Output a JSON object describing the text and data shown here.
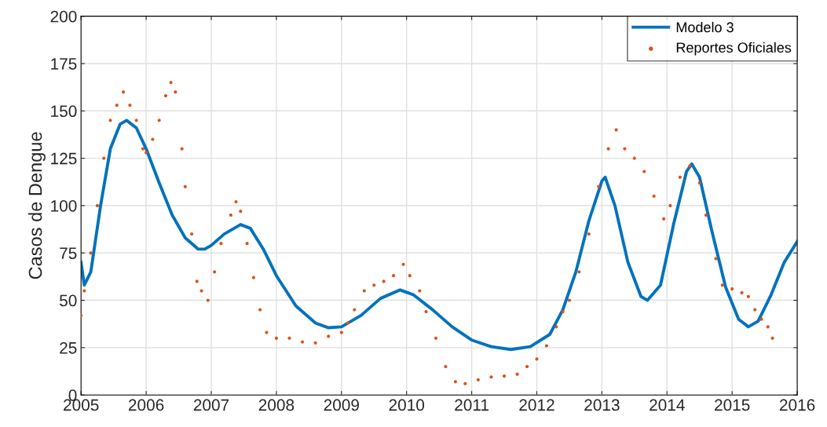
{
  "chart_data": {
    "type": "line",
    "ylabel": "Casos de Dengue",
    "xlim": [
      2005,
      2016
    ],
    "xticks": [
      2005,
      2006,
      2007,
      2008,
      2009,
      2010,
      2011,
      2012,
      2013,
      2014,
      2015,
      2016
    ],
    "ylim": [
      0,
      200
    ],
    "yticks": [
      0,
      25,
      50,
      75,
      100,
      125,
      150,
      175,
      200
    ],
    "grid": true,
    "legend": "top right",
    "series": [
      {
        "name": "Modelo 3",
        "color": "#0072bd",
        "marker": "none",
        "line_style": "solid",
        "x": [
          2005.0,
          2005.05,
          2005.15,
          2005.3,
          2005.45,
          2005.6,
          2005.7,
          2005.85,
          2006.0,
          2006.2,
          2006.4,
          2006.6,
          2006.8,
          2006.9,
          2007.0,
          2007.2,
          2007.45,
          2007.6,
          2007.8,
          2008.0,
          2008.3,
          2008.6,
          2008.8,
          2009.0,
          2009.3,
          2009.6,
          2009.9,
          2010.1,
          2010.4,
          2010.7,
          2011.0,
          2011.3,
          2011.6,
          2011.9,
          2012.2,
          2012.4,
          2012.6,
          2012.8,
          2013.0,
          2013.05,
          2013.2,
          2013.4,
          2013.6,
          2013.7,
          2013.9,
          2014.1,
          2014.3,
          2014.38,
          2014.5,
          2014.7,
          2014.9,
          2015.1,
          2015.25,
          2015.4,
          2015.6,
          2015.8,
          2016.0
        ],
        "values": [
          70,
          58,
          65,
          100,
          130,
          143,
          145,
          141,
          130,
          112,
          95,
          83,
          77,
          77,
          79,
          85,
          90,
          88,
          77,
          63,
          47,
          38,
          35.5,
          36,
          42,
          51,
          55.5,
          53,
          45,
          36,
          29,
          25.5,
          24,
          25.5,
          32,
          45,
          65,
          92,
          113,
          115,
          100,
          70,
          52,
          50,
          58,
          90,
          118,
          122,
          115,
          85,
          57,
          40,
          36,
          39,
          53,
          70,
          81
        ]
      },
      {
        "name": "Reportes Oficiales",
        "type": "scatter",
        "color": "#d95319",
        "marker": "circle",
        "x": [
          2005.0,
          2005.05,
          2005.15,
          2005.25,
          2005.35,
          2005.45,
          2005.55,
          2005.65,
          2005.75,
          2005.85,
          2005.95,
          2006.0,
          2006.1,
          2006.2,
          2006.3,
          2006.38,
          2006.45,
          2006.55,
          2006.6,
          2006.7,
          2006.78,
          2006.85,
          2006.95,
          2007.05,
          2007.15,
          2007.3,
          2007.38,
          2007.45,
          2007.55,
          2007.65,
          2007.75,
          2007.85,
          2008.0,
          2008.2,
          2008.4,
          2008.6,
          2008.8,
          2009.0,
          2009.1,
          2009.2,
          2009.35,
          2009.5,
          2009.65,
          2009.8,
          2009.95,
          2010.05,
          2010.2,
          2010.3,
          2010.45,
          2010.6,
          2010.75,
          2010.9,
          2011.1,
          2011.3,
          2011.5,
          2011.7,
          2011.85,
          2012.0,
          2012.15,
          2012.3,
          2012.4,
          2012.5,
          2012.65,
          2012.8,
          2012.95,
          2013.1,
          2013.22,
          2013.35,
          2013.5,
          2013.65,
          2013.8,
          2013.95,
          2014.05,
          2014.2,
          2014.35,
          2014.5,
          2014.6,
          2014.75,
          2014.85,
          2015.0,
          2015.15,
          2015.25,
          2015.35,
          2015.45,
          2015.55,
          2015.62
        ],
        "values": [
          42,
          55,
          75,
          100,
          125,
          145,
          153,
          160,
          153,
          145,
          130,
          128,
          135,
          145,
          158,
          165,
          160,
          130,
          110,
          85,
          60,
          55,
          50,
          65,
          80,
          95,
          102,
          97,
          80,
          62,
          45,
          33,
          30,
          30,
          28,
          27.5,
          31,
          33,
          38,
          45,
          55,
          58,
          60,
          63,
          69,
          63,
          55,
          44,
          30,
          15,
          7,
          6,
          8,
          9.5,
          10,
          11,
          15,
          19,
          26,
          36,
          44,
          50,
          65,
          85,
          110,
          130,
          140,
          130,
          125,
          118,
          105,
          93,
          100,
          115,
          121,
          112,
          95,
          72,
          58,
          56,
          54,
          52,
          45,
          40,
          36,
          30
        ]
      }
    ]
  }
}
